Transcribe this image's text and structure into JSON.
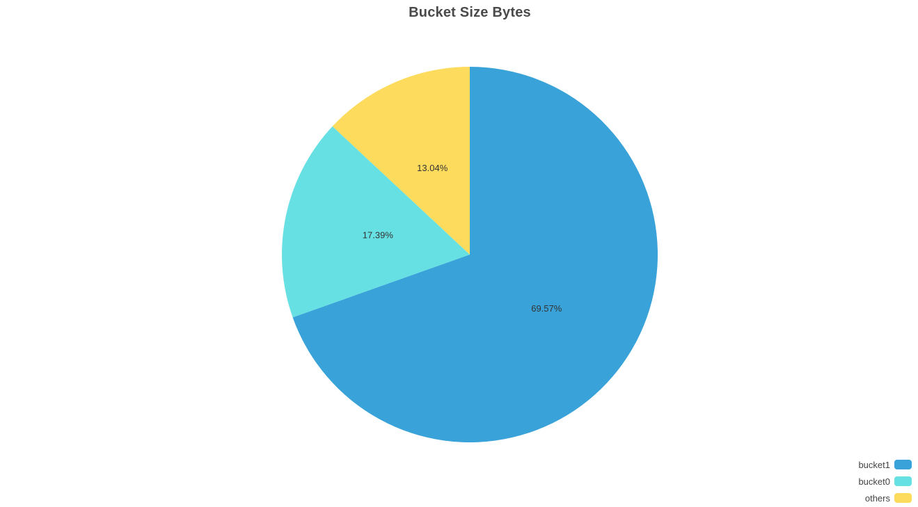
{
  "chart_data": {
    "type": "pie",
    "title": "Bucket Size Bytes",
    "slices": [
      {
        "name": "bucket1",
        "value": 69.57,
        "label": "69.57%",
        "color": "#38a2d9"
      },
      {
        "name": "bucket0",
        "value": 17.39,
        "label": "17.39%",
        "color": "#67e0e3"
      },
      {
        "name": "others",
        "value": 13.04,
        "label": "13.04%",
        "color": "#fddb5d"
      }
    ],
    "start_angle": "12 o'clock",
    "direction": "clockwise",
    "legend_position": "bottom-right"
  }
}
